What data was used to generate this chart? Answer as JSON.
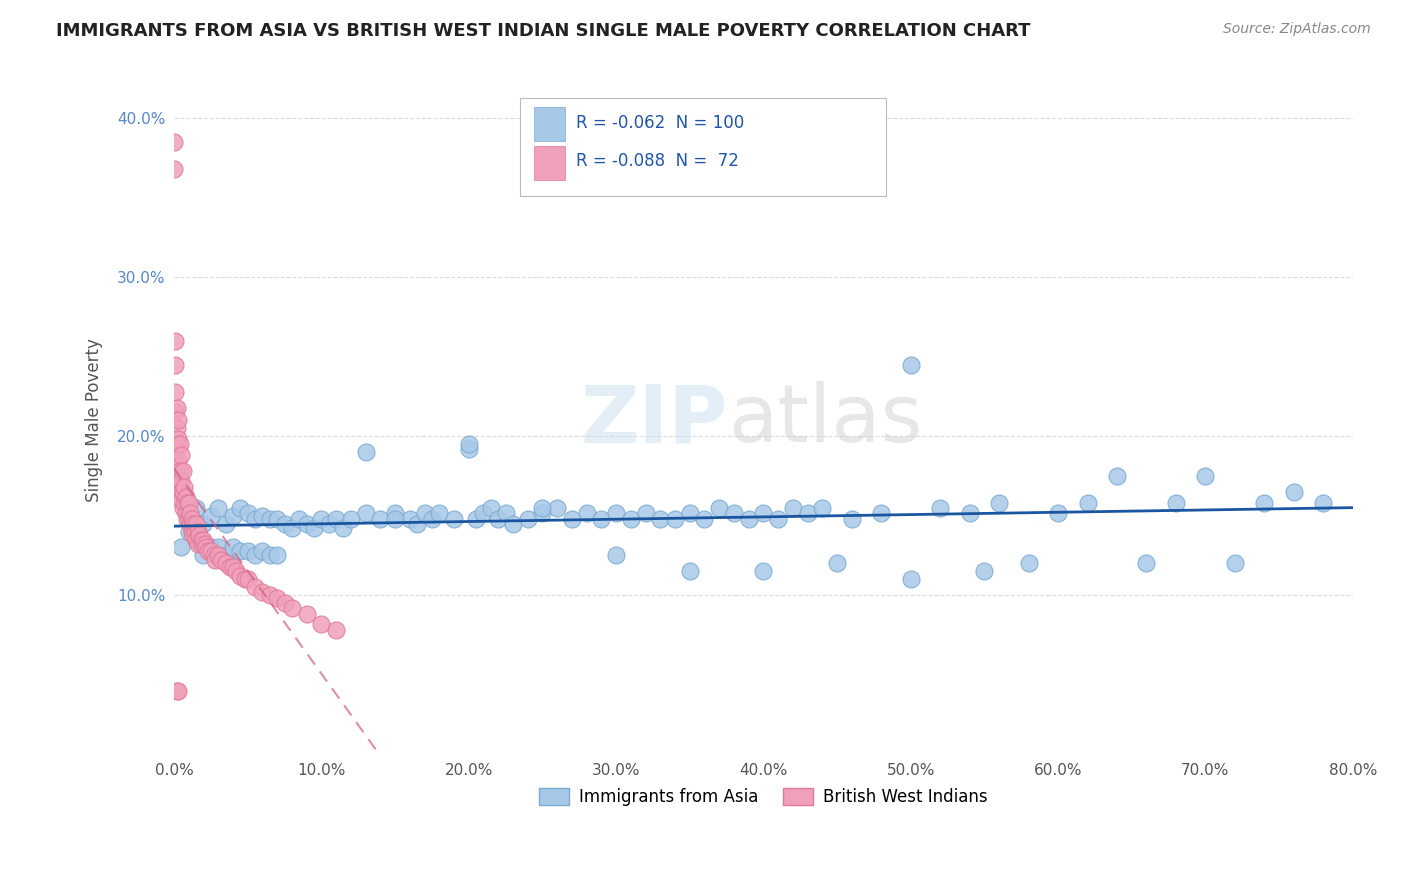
{
  "title": "IMMIGRANTS FROM ASIA VS BRITISH WEST INDIAN SINGLE MALE POVERTY CORRELATION CHART",
  "source": "Source: ZipAtlas.com",
  "ylabel": "Single Male Poverty",
  "xlim": [
    0.0,
    0.8
  ],
  "ylim": [
    0.0,
    0.42
  ],
  "xticks": [
    0.0,
    0.1,
    0.2,
    0.3,
    0.4,
    0.5,
    0.6,
    0.7,
    0.8
  ],
  "yticks": [
    0.1,
    0.2,
    0.3,
    0.4
  ],
  "ytick_labels": [
    "10.0%",
    "20.0%",
    "30.0%",
    "40.0%"
  ],
  "xtick_labels": [
    "0.0%",
    "10.0%",
    "20.0%",
    "30.0%",
    "40.0%",
    "50.0%",
    "60.0%",
    "70.0%",
    "80.0%"
  ],
  "legend_text1": "R = -0.062  N = 100",
  "legend_text2": "R = -0.088  N =  72",
  "legend_label1": "Immigrants from Asia",
  "legend_label2": "British West Indians",
  "color_asia": "#a8c8e8",
  "color_bwi": "#f0a0b8",
  "color_asia_edge": "#7aaad0",
  "color_bwi_edge": "#e07898",
  "color_line_asia": "#1a56a0",
  "color_line_bwi": "#cc6080",
  "background": "#ffffff",
  "grid_color": "#cccccc",
  "watermark_zip": "ZIP",
  "watermark_atlas": "atlas",
  "asia_x": [
    0.005,
    0.01,
    0.015,
    0.015,
    0.02,
    0.02,
    0.025,
    0.025,
    0.03,
    0.03,
    0.035,
    0.035,
    0.04,
    0.04,
    0.045,
    0.045,
    0.05,
    0.05,
    0.055,
    0.055,
    0.06,
    0.06,
    0.065,
    0.065,
    0.07,
    0.07,
    0.075,
    0.08,
    0.085,
    0.09,
    0.095,
    0.1,
    0.105,
    0.11,
    0.115,
    0.12,
    0.13,
    0.14,
    0.15,
    0.16,
    0.165,
    0.17,
    0.175,
    0.18,
    0.19,
    0.2,
    0.205,
    0.21,
    0.215,
    0.22,
    0.225,
    0.23,
    0.24,
    0.25,
    0.26,
    0.27,
    0.28,
    0.29,
    0.3,
    0.31,
    0.32,
    0.33,
    0.34,
    0.35,
    0.36,
    0.37,
    0.38,
    0.39,
    0.4,
    0.41,
    0.42,
    0.43,
    0.44,
    0.46,
    0.48,
    0.5,
    0.52,
    0.54,
    0.56,
    0.58,
    0.6,
    0.62,
    0.64,
    0.66,
    0.68,
    0.7,
    0.72,
    0.74,
    0.76,
    0.78,
    0.13,
    0.15,
    0.2,
    0.25,
    0.3,
    0.35,
    0.4,
    0.45,
    0.5,
    0.55
  ],
  "asia_y": [
    0.13,
    0.14,
    0.155,
    0.135,
    0.145,
    0.125,
    0.15,
    0.13,
    0.155,
    0.13,
    0.145,
    0.125,
    0.15,
    0.13,
    0.155,
    0.128,
    0.152,
    0.128,
    0.148,
    0.125,
    0.15,
    0.128,
    0.148,
    0.125,
    0.148,
    0.125,
    0.145,
    0.142,
    0.148,
    0.145,
    0.142,
    0.148,
    0.145,
    0.148,
    0.142,
    0.148,
    0.152,
    0.148,
    0.152,
    0.148,
    0.145,
    0.152,
    0.148,
    0.152,
    0.148,
    0.192,
    0.148,
    0.152,
    0.155,
    0.148,
    0.152,
    0.145,
    0.148,
    0.152,
    0.155,
    0.148,
    0.152,
    0.148,
    0.152,
    0.148,
    0.152,
    0.148,
    0.148,
    0.152,
    0.148,
    0.155,
    0.152,
    0.148,
    0.152,
    0.148,
    0.155,
    0.152,
    0.155,
    0.148,
    0.152,
    0.245,
    0.155,
    0.152,
    0.158,
    0.12,
    0.152,
    0.158,
    0.175,
    0.12,
    0.158,
    0.175,
    0.12,
    0.158,
    0.165,
    0.158,
    0.19,
    0.148,
    0.195,
    0.155,
    0.125,
    0.115,
    0.115,
    0.12,
    0.11,
    0.115
  ],
  "bwi_x": [
    0.0,
    0.0,
    0.001,
    0.001,
    0.001,
    0.001,
    0.002,
    0.002,
    0.002,
    0.002,
    0.003,
    0.003,
    0.003,
    0.003,
    0.004,
    0.004,
    0.004,
    0.005,
    0.005,
    0.005,
    0.006,
    0.006,
    0.006,
    0.007,
    0.007,
    0.008,
    0.008,
    0.009,
    0.009,
    0.01,
    0.01,
    0.011,
    0.011,
    0.012,
    0.012,
    0.013,
    0.013,
    0.014,
    0.015,
    0.015,
    0.016,
    0.016,
    0.017,
    0.018,
    0.019,
    0.02,
    0.021,
    0.022,
    0.023,
    0.025,
    0.027,
    0.028,
    0.03,
    0.032,
    0.035,
    0.038,
    0.04,
    0.042,
    0.045,
    0.048,
    0.05,
    0.055,
    0.06,
    0.065,
    0.07,
    0.075,
    0.08,
    0.09,
    0.1,
    0.11,
    0.002,
    0.003
  ],
  "bwi_y": [
    0.385,
    0.368,
    0.26,
    0.245,
    0.228,
    0.215,
    0.218,
    0.205,
    0.195,
    0.182,
    0.21,
    0.198,
    0.185,
    0.172,
    0.195,
    0.178,
    0.165,
    0.188,
    0.172,
    0.16,
    0.178,
    0.165,
    0.155,
    0.168,
    0.158,
    0.162,
    0.152,
    0.158,
    0.148,
    0.158,
    0.148,
    0.152,
    0.145,
    0.148,
    0.14,
    0.145,
    0.138,
    0.14,
    0.145,
    0.135,
    0.14,
    0.132,
    0.138,
    0.135,
    0.132,
    0.135,
    0.132,
    0.13,
    0.128,
    0.128,
    0.125,
    0.122,
    0.125,
    0.122,
    0.12,
    0.118,
    0.118,
    0.115,
    0.112,
    0.11,
    0.11,
    0.105,
    0.102,
    0.1,
    0.098,
    0.095,
    0.092,
    0.088,
    0.082,
    0.078,
    0.04,
    0.04
  ]
}
